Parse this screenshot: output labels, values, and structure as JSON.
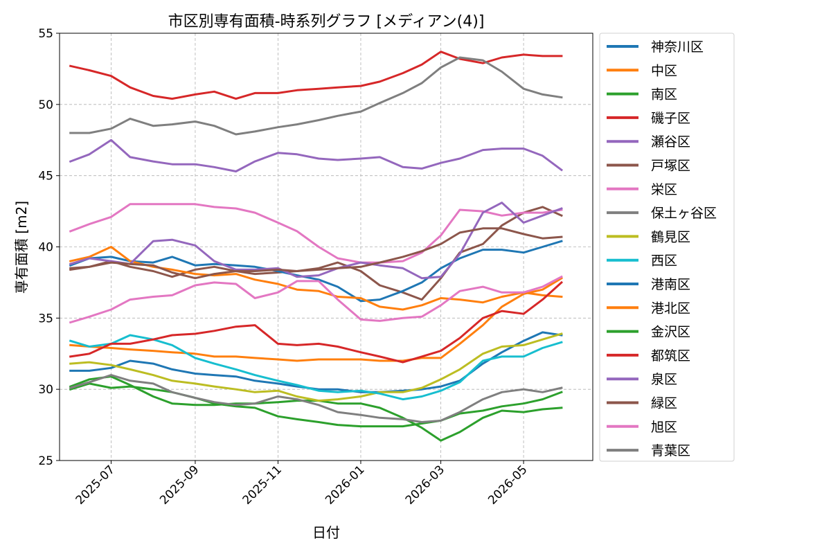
{
  "chart_data": {
    "type": "line",
    "title": "市区別専有面積-時系列グラフ [メディアン(4)]",
    "xlabel": "日付",
    "ylabel": "専有面積 [m2]",
    "xlim": [
      "2025-05-24",
      "2026-06-21"
    ],
    "ylim": [
      25,
      55
    ],
    "yticks": [
      25,
      30,
      35,
      40,
      45,
      50,
      55
    ],
    "xticks": [
      "2025-07-01",
      "2025-09-01",
      "2025-11-01",
      "2026-01-01",
      "2026-03-01",
      "2026-05-01"
    ],
    "xtick_labels": [
      "2025-07",
      "2025-09",
      "2025-11",
      "2026-01",
      "2026-03",
      "2026-05"
    ],
    "grid": true,
    "legend_position": "outside-right",
    "x": [
      "2025-06-01",
      "2025-06-15",
      "2025-07-01",
      "2025-07-15",
      "2025-08-01",
      "2025-08-15",
      "2025-09-01",
      "2025-09-15",
      "2025-10-01",
      "2025-10-15",
      "2025-11-01",
      "2025-11-15",
      "2025-12-01",
      "2025-12-15",
      "2026-01-01",
      "2026-01-15",
      "2026-02-01",
      "2026-02-15",
      "2026-03-01",
      "2026-03-15",
      "2026-04-01",
      "2026-04-15",
      "2026-05-01",
      "2026-05-15",
      "2026-05-29"
    ],
    "series": [
      {
        "name": "神奈川区",
        "color": "#1f77b4",
        "values": [
          31.3,
          31.3,
          31.5,
          32.0,
          31.8,
          31.4,
          31.1,
          31.0,
          30.9,
          30.6,
          30.4,
          30.2,
          30.0,
          30.0,
          29.8,
          29.8,
          29.9,
          30.0,
          30.2,
          30.6,
          31.8,
          32.6,
          33.4,
          34.0,
          33.8
        ]
      },
      {
        "name": "中区",
        "color": "#ff7f0e",
        "values": [
          33.1,
          33.0,
          32.9,
          32.8,
          32.7,
          32.6,
          32.5,
          32.3,
          32.3,
          32.2,
          32.1,
          32.0,
          32.1,
          32.1,
          32.1,
          32.0,
          32.0,
          32.2,
          32.2,
          33.2,
          34.5,
          35.8,
          36.7,
          37.0,
          37.8
        ]
      },
      {
        "name": "南区",
        "color": "#2ca02c",
        "values": [
          30.2,
          30.7,
          30.9,
          30.3,
          29.5,
          29.0,
          28.9,
          28.9,
          29.0,
          29.0,
          29.1,
          29.2,
          29.2,
          29.0,
          29.0,
          28.7,
          28.0,
          27.3,
          26.4,
          27.0,
          28.0,
          28.5,
          28.4,
          28.6,
          28.7
        ]
      },
      {
        "name": "磯子区",
        "color": "#d62728",
        "values": [
          52.7,
          52.4,
          52.0,
          51.2,
          50.6,
          50.4,
          50.7,
          50.9,
          50.4,
          50.8,
          50.8,
          51.0,
          51.1,
          51.2,
          51.3,
          51.6,
          52.2,
          52.8,
          53.7,
          53.2,
          52.9,
          53.3,
          53.5,
          53.4,
          53.4
        ]
      },
      {
        "name": "瀬谷区",
        "color": "#9467bd",
        "values": [
          46.0,
          46.5,
          47.5,
          46.3,
          46.0,
          45.8,
          45.8,
          45.6,
          45.3,
          46.0,
          46.6,
          46.5,
          46.2,
          46.1,
          46.2,
          46.3,
          45.6,
          45.5,
          45.9,
          46.2,
          46.8,
          46.9,
          46.9,
          46.4,
          45.4
        ]
      },
      {
        "name": "戸塚区",
        "color": "#8c564b",
        "values": [
          38.5,
          38.6,
          39.0,
          38.6,
          38.3,
          37.9,
          38.4,
          38.6,
          38.3,
          38.1,
          38.2,
          38.3,
          38.5,
          38.9,
          38.3,
          37.3,
          36.8,
          36.3,
          37.8,
          39.6,
          40.2,
          41.5,
          42.4,
          42.8,
          42.2
        ]
      },
      {
        "name": "栄区",
        "color": "#e377c2",
        "values": [
          41.1,
          41.6,
          42.1,
          43.0,
          43.0,
          43.0,
          43.0,
          42.8,
          42.7,
          42.4,
          41.7,
          41.1,
          40.0,
          39.2,
          38.9,
          38.9,
          39.0,
          39.6,
          40.8,
          42.6,
          42.5,
          42.2,
          42.4,
          42.4,
          42.6
        ]
      },
      {
        "name": "保土ヶ谷区",
        "color": "#7f7f7f",
        "values": [
          48.0,
          48.0,
          48.3,
          49.0,
          48.5,
          48.6,
          48.8,
          48.5,
          47.9,
          48.1,
          48.4,
          48.6,
          48.9,
          49.2,
          49.5,
          50.1,
          50.8,
          51.5,
          52.6,
          53.3,
          53.1,
          52.3,
          51.1,
          50.7,
          50.5
        ]
      },
      {
        "name": "鶴見区",
        "color": "#bcbd22",
        "values": [
          31.8,
          31.9,
          31.7,
          31.4,
          31.0,
          30.6,
          30.4,
          30.2,
          30.0,
          29.8,
          29.9,
          29.5,
          29.2,
          29.3,
          29.5,
          29.8,
          29.8,
          30.1,
          30.7,
          31.4,
          32.5,
          33.0,
          33.1,
          33.5,
          33.9
        ]
      },
      {
        "name": "西区",
        "color": "#17becf",
        "values": [
          33.4,
          33.0,
          33.2,
          33.8,
          33.5,
          33.1,
          32.2,
          31.8,
          31.4,
          31.0,
          30.6,
          30.3,
          29.9,
          29.8,
          29.9,
          29.7,
          29.3,
          29.5,
          29.9,
          30.5,
          32.0,
          32.3,
          32.3,
          32.9,
          33.3
        ]
      },
      {
        "name": "港南区",
        "color": "#1f77b4",
        "values": [
          38.7,
          39.2,
          39.3,
          39.0,
          38.9,
          39.3,
          38.7,
          38.8,
          38.7,
          38.6,
          38.3,
          38.0,
          37.7,
          37.2,
          36.2,
          36.3,
          36.9,
          37.5,
          38.5,
          39.2,
          39.8,
          39.8,
          39.6,
          40.0,
          40.4
        ]
      },
      {
        "name": "港北区",
        "color": "#ff7f0e",
        "values": [
          39.0,
          39.3,
          40.0,
          39.0,
          38.6,
          38.4,
          38.1,
          38.0,
          38.1,
          37.7,
          37.4,
          37.0,
          36.9,
          36.5,
          36.4,
          35.8,
          35.6,
          35.9,
          36.4,
          36.3,
          36.1,
          36.5,
          36.8,
          36.6,
          36.5
        ]
      },
      {
        "name": "金沢区",
        "color": "#2ca02c",
        "values": [
          30.0,
          30.4,
          30.1,
          30.2,
          30.0,
          29.8,
          29.4,
          29.0,
          28.8,
          28.7,
          28.1,
          27.9,
          27.7,
          27.5,
          27.4,
          27.4,
          27.4,
          27.6,
          27.8,
          28.3,
          28.5,
          28.8,
          29.0,
          29.3,
          29.8
        ]
      },
      {
        "name": "都筑区",
        "color": "#d62728",
        "values": [
          32.3,
          32.5,
          33.2,
          33.2,
          33.5,
          33.8,
          33.9,
          34.1,
          34.4,
          34.5,
          33.2,
          33.1,
          33.2,
          33.0,
          32.6,
          32.3,
          31.9,
          32.3,
          32.7,
          33.6,
          35.0,
          35.5,
          35.3,
          36.3,
          37.5
        ]
      },
      {
        "name": "泉区",
        "color": "#9467bd",
        "values": [
          38.8,
          39.2,
          39.0,
          38.8,
          40.4,
          40.5,
          40.1,
          39.0,
          38.4,
          38.4,
          38.5,
          37.9,
          38.0,
          38.5,
          38.9,
          38.7,
          38.5,
          37.8,
          37.9,
          39.5,
          42.4,
          43.1,
          41.7,
          42.2,
          42.7
        ]
      },
      {
        "name": "緑区",
        "color": "#8c564b",
        "values": [
          38.4,
          38.6,
          38.9,
          38.8,
          38.7,
          38.2,
          37.8,
          38.1,
          38.3,
          38.3,
          38.4,
          38.3,
          38.4,
          38.5,
          38.6,
          38.9,
          39.3,
          39.7,
          40.2,
          41.0,
          41.3,
          41.3,
          40.9,
          40.6,
          40.7
        ]
      },
      {
        "name": "旭区",
        "color": "#e377c2",
        "values": [
          34.7,
          35.1,
          35.6,
          36.3,
          36.5,
          36.6,
          37.3,
          37.5,
          37.4,
          36.4,
          36.8,
          37.6,
          37.6,
          36.3,
          34.9,
          34.8,
          35.0,
          35.1,
          35.9,
          36.9,
          37.2,
          36.8,
          36.8,
          37.2,
          37.9
        ]
      },
      {
        "name": "青葉区",
        "color": "#7f7f7f",
        "values": [
          30.1,
          30.5,
          31.0,
          30.6,
          30.4,
          29.8,
          29.4,
          29.1,
          28.9,
          29.0,
          29.5,
          29.3,
          28.9,
          28.4,
          28.2,
          28.0,
          27.9,
          27.7,
          27.8,
          28.4,
          29.3,
          29.8,
          30.0,
          29.8,
          30.1
        ]
      }
    ]
  }
}
